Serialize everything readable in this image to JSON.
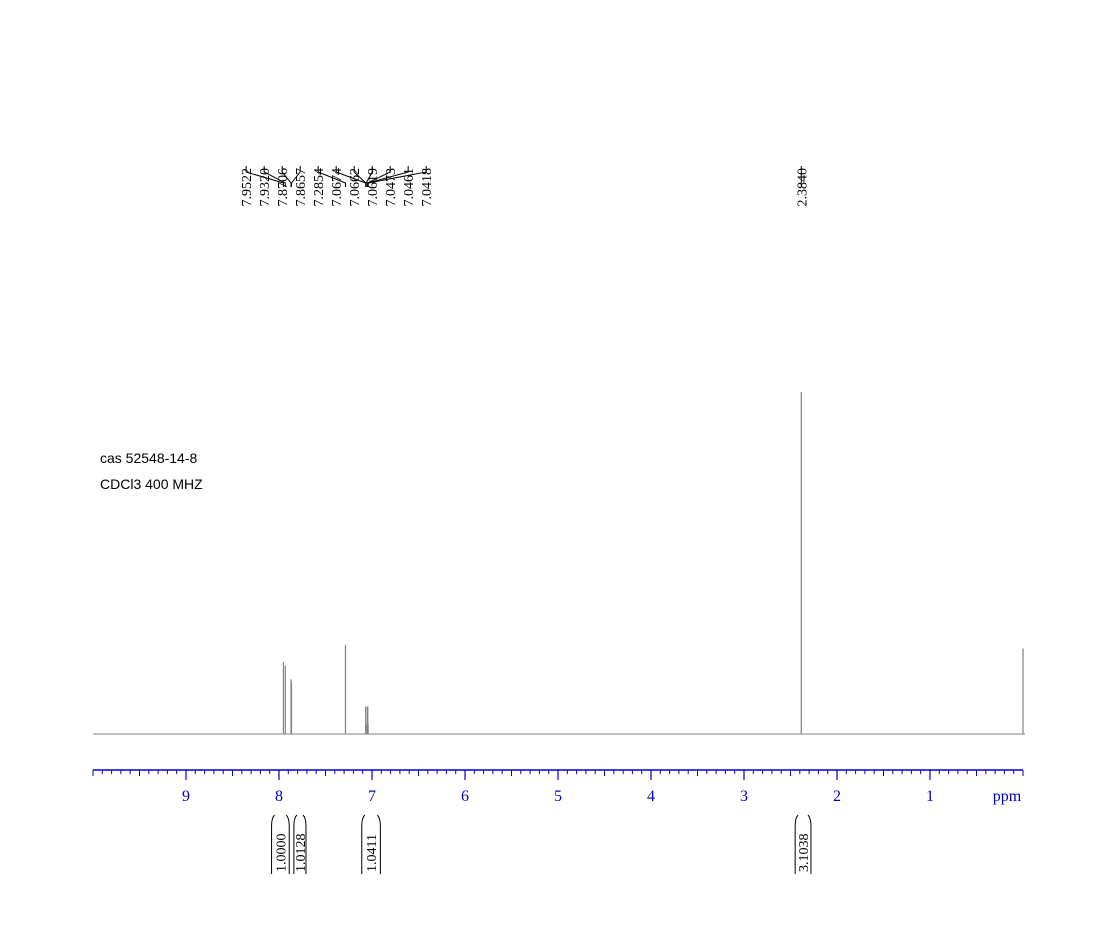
{
  "chart_data": {
    "type": "nmr",
    "sample": [
      "cas 52548-14-8",
      "CDCl3 400 MHZ"
    ],
    "x_label": "ppm",
    "xlim": [
      10,
      0
    ],
    "xticks": [
      9,
      8,
      7,
      6,
      5,
      4,
      3,
      2,
      1
    ],
    "ylim": [
      0,
      100
    ],
    "color": "#808080",
    "axis_color": "#0000cc",
    "peaks": {
      "x": [
        7.9522,
        7.932,
        7.8706,
        7.8657,
        7.2854,
        7.0674,
        7.0662,
        7.0619,
        7.0473,
        7.0461,
        7.0418,
        2.384,
        0
      ],
      "values": [
        21,
        20,
        16,
        15,
        26,
        8,
        8,
        3,
        8,
        8,
        3,
        100,
        25
      ]
    },
    "peak_labels": [
      {
        "value": 7.9522,
        "label": "7.9522"
      },
      {
        "value": 7.932,
        "label": "7.9320"
      },
      {
        "value": 7.8706,
        "label": "7.8706"
      },
      {
        "value": 7.8657,
        "label": "7.8657"
      },
      {
        "value": 7.2854,
        "label": "7.2854"
      },
      {
        "value": 7.0674,
        "label": "7.0674"
      },
      {
        "value": 7.0662,
        "label": "7.0662"
      },
      {
        "value": 7.0619,
        "label": "7.0619"
      },
      {
        "value": 7.0473,
        "label": "7.0473"
      },
      {
        "value": 7.0461,
        "label": "7.0461"
      },
      {
        "value": 7.0418,
        "label": "7.0418"
      },
      {
        "value": 2.384,
        "label": "2.3840"
      }
    ],
    "integrals": [
      {
        "value": 1,
        "label": "1.0000",
        "range": [
          8.08,
          7.89
        ]
      },
      {
        "value": 1.0128,
        "label": "1.0128",
        "range": [
          7.84,
          7.71
        ]
      },
      {
        "value": 1.0411,
        "label": "1.0411",
        "range": [
          7.11,
          6.91
        ]
      },
      {
        "value": 3.1038,
        "label": "3.1038",
        "range": [
          2.45,
          2.28
        ]
      }
    ]
  }
}
